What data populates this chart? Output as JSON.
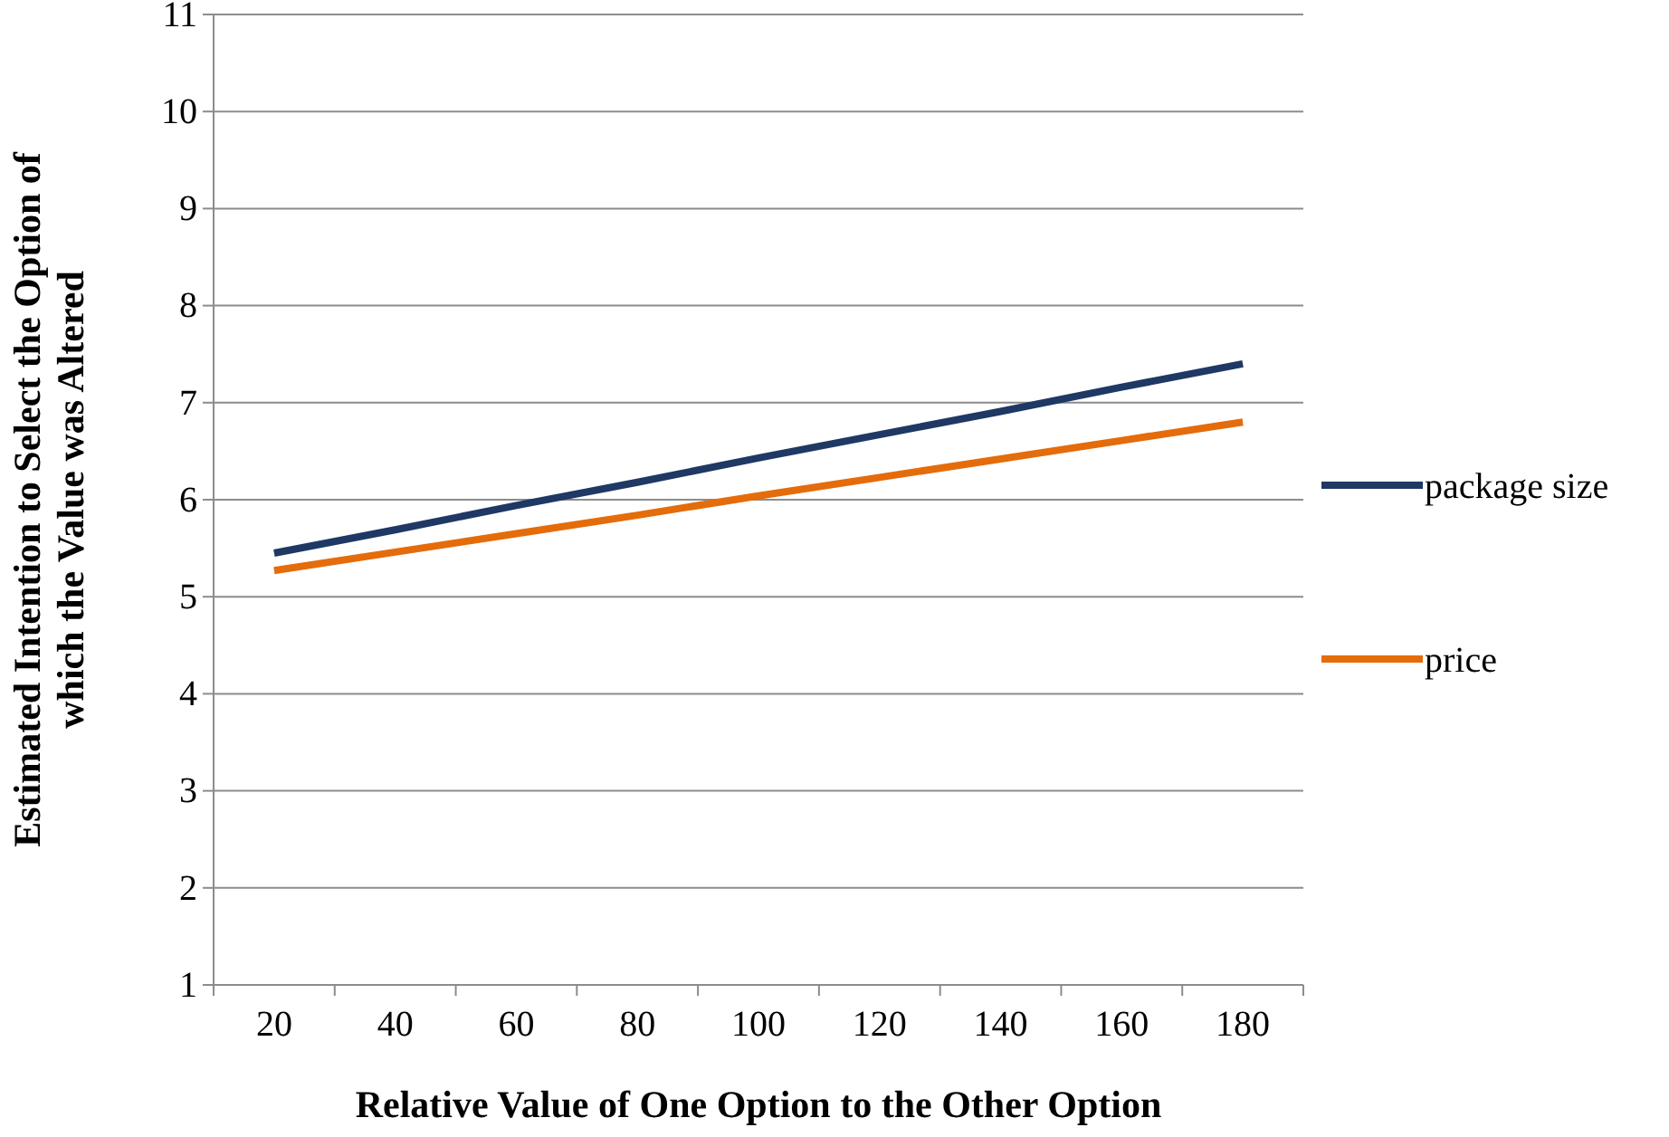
{
  "chart_data": {
    "type": "line",
    "xlabel": "Relative Value of One Option to the Other Option",
    "ylabel": "Estimated Intention to Select the Option of\nwhich the Value was Altered",
    "categories": [
      "20",
      "40",
      "60",
      "80",
      "100",
      "120",
      "140",
      "160",
      "180"
    ],
    "series": [
      {
        "name": "package size",
        "color": "#1f3864",
        "values": [
          5.45,
          5.69,
          5.94,
          6.18,
          6.43,
          6.67,
          6.91,
          7.16,
          7.4
        ]
      },
      {
        "name": "price",
        "color": "#e46c0a",
        "values": [
          5.27,
          5.46,
          5.65,
          5.84,
          6.04,
          6.23,
          6.42,
          6.61,
          6.8
        ]
      }
    ],
    "ylim": [
      1,
      11
    ],
    "yticks": [
      1,
      2,
      3,
      4,
      5,
      6,
      7,
      8,
      9,
      10,
      11
    ],
    "grid": "y",
    "legend": "right",
    "marker": "none",
    "line_style": "solid"
  }
}
